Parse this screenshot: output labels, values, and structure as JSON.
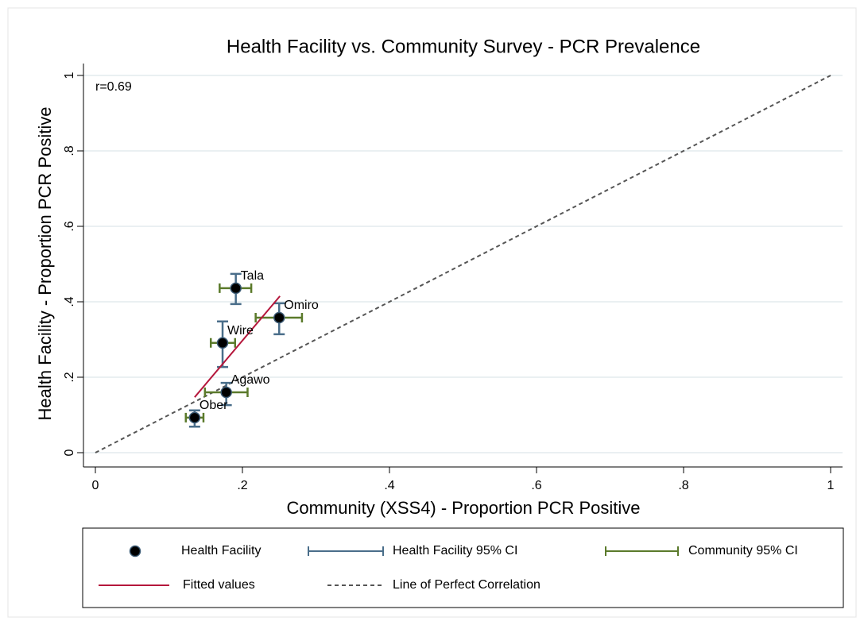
{
  "chart_data": {
    "type": "scatter",
    "title": "Health Facility vs. Community Survey - PCR Prevalence",
    "xlabel": "Community (XSS4) - Proportion PCR Positive",
    "ylabel": "Health Facility - Proportion PCR Positive",
    "annotation": "r=0.69",
    "xlim": [
      0,
      1
    ],
    "ylim": [
      0,
      1
    ],
    "xticks": [
      0,
      {
        "value": 0.2,
        "label": ".2"
      },
      {
        "value": 0.4,
        "label": ".4"
      },
      {
        "value": 0.6,
        "label": ".6"
      },
      {
        "value": 0.8,
        "label": ".8"
      },
      1
    ],
    "yticks": [
      0,
      {
        "value": 0.2,
        "label": ".2"
      },
      {
        "value": 0.4,
        "label": ".4"
      },
      {
        "value": 0.6,
        "label": ".6"
      },
      {
        "value": 0.8,
        "label": ".8"
      },
      1
    ],
    "grid": true,
    "points": {
      "name": "Health Facility",
      "color": "#000000",
      "edge": "#3b5a74",
      "labels": [
        "Tala",
        "Omiro",
        "Wire",
        "Agawo",
        "Ober"
      ],
      "x": [
        0.191,
        0.25,
        0.173,
        0.178,
        0.135
      ],
      "values": [
        0.436,
        0.358,
        0.291,
        0.16,
        0.093
      ]
    },
    "hf_ci": {
      "name": "Health Facility 95% CI",
      "color": "#4a6e8a",
      "low": [
        0.394,
        0.314,
        0.227,
        0.126,
        0.069
      ],
      "high": [
        0.474,
        0.396,
        0.348,
        0.185,
        0.112
      ]
    },
    "comm_ci": {
      "name": "Community 95% CI",
      "color": "#5b7a2b",
      "low": [
        0.169,
        0.218,
        0.157,
        0.149,
        0.123
      ],
      "high": [
        0.212,
        0.281,
        0.19,
        0.207,
        0.147
      ]
    },
    "fitted": {
      "name": "Fitted values",
      "color": "#b5173c",
      "x": [
        0.135,
        0.251
      ],
      "values": [
        0.147,
        0.415
      ]
    },
    "perfect": {
      "name": "Line of Perfect Correlation",
      "color": "#555555",
      "x": [
        0,
        1
      ],
      "values": [
        0,
        1
      ]
    }
  }
}
